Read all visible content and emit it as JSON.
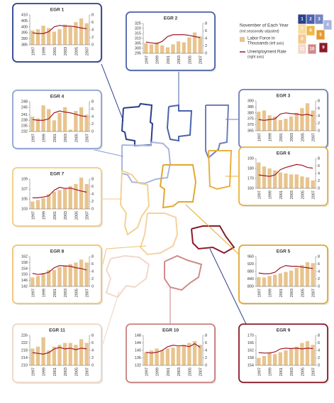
{
  "legend": {
    "title": "November of Each Year",
    "note": "(not seasonally adjusted)",
    "items": [
      {
        "name": "Labor Force in",
        "name2": "Thousands",
        "axis_note": "(left axis)",
        "color": "#e8c48e"
      },
      {
        "name": "Unemployment Rate",
        "axis_note": "(right axis)",
        "color": "#a0182a"
      }
    ],
    "map": [
      {
        "label": "1",
        "color": "#2b3f8c"
      },
      {
        "label": "2",
        "color": "#4a62aa"
      },
      {
        "label": "3",
        "color": "#7385c0"
      },
      {
        "label": "4",
        "color": "#a9b6de"
      },
      {
        "label": "7",
        "color": "#f6dca0"
      },
      {
        "label": "6",
        "color": "#f0b848"
      },
      {
        "label": "5",
        "color": "#e49a30"
      },
      {
        "label": "8",
        "color": "#f6c890"
      },
      {
        "label": "11",
        "color": "#f2d8cc"
      },
      {
        "label": "10",
        "color": "#d08a8a"
      },
      {
        "label": "9",
        "color": "#8b1a2a"
      }
    ]
  },
  "chart_data": [
    {
      "type": "combo",
      "title": "EGR 1",
      "box_color": "#2b3f8c",
      "categories": [
        "1997",
        null,
        "1999",
        null,
        "2001",
        null,
        "2003",
        null,
        "2005",
        null,
        "2007"
      ],
      "ylim": [
        385,
        410
      ],
      "yticks": [
        385,
        390,
        395,
        400,
        405,
        410
      ],
      "y2lim": [
        0,
        8
      ],
      "y2ticks": [
        0,
        2,
        4,
        6,
        8
      ],
      "series": [
        {
          "type": "bar",
          "color": "#e8c48e",
          "values": [
            397,
            398,
            401,
            399,
            396,
            398,
            402,
            400,
            404,
            407,
            403
          ]
        },
        {
          "type": "line",
          "axis": "y2",
          "color": "#a0182a",
          "values": [
            3.2,
            3.0,
            3.0,
            3.5,
            4.8,
            5.2,
            5.0,
            5.0,
            4.8,
            4.5,
            4.3
          ]
        }
      ]
    },
    {
      "type": "combo",
      "title": "EGR 2",
      "box_color": "#4a62aa",
      "categories": [
        "1997",
        null,
        "1999",
        null,
        "2001",
        null,
        "2003",
        null,
        "2005",
        null,
        "2007"
      ],
      "ylim": [
        295,
        325
      ],
      "yticks": [
        295,
        300,
        305,
        310,
        315,
        320,
        325
      ],
      "y2lim": [
        0,
        8
      ],
      "y2ticks": [
        0,
        2,
        4,
        6,
        8
      ],
      "series": [
        {
          "type": "bar",
          "color": "#e8c48e",
          "values": [
            305,
            304,
            306,
            303,
            301,
            304,
            307,
            306,
            311,
            316,
            312
          ]
        },
        {
          "type": "line",
          "axis": "y2",
          "color": "#a0182a",
          "values": [
            3.0,
            2.8,
            2.6,
            3.2,
            4.5,
            5.0,
            5.0,
            5.0,
            4.8,
            4.5,
            4.2
          ]
        }
      ]
    },
    {
      "type": "combo",
      "title": "EGR 3",
      "box_color": "#6d80b8",
      "categories": [
        "1997",
        null,
        "1999",
        null,
        "2001",
        null,
        "2003",
        null,
        "2005",
        null,
        "2007"
      ],
      "ylim": [
        365,
        390
      ],
      "yticks": [
        365,
        370,
        375,
        380,
        385,
        390
      ],
      "y2lim": [
        0,
        8
      ],
      "y2ticks": [
        0,
        2,
        4,
        6,
        8
      ],
      "series": [
        {
          "type": "bar",
          "color": "#e8c48e",
          "values": [
            381,
            382,
            378,
            377,
            374,
            375,
            377,
            380,
            384,
            388,
            382
          ]
        },
        {
          "type": "line",
          "axis": "y2",
          "color": "#a0182a",
          "values": [
            3.0,
            2.8,
            3.0,
            3.2,
            4.5,
            4.8,
            4.6,
            4.5,
            4.2,
            4.4,
            4.0
          ]
        }
      ]
    },
    {
      "type": "combo",
      "title": "EGR 4",
      "box_color": "#8fa0cc",
      "categories": [
        "1997",
        null,
        "1999",
        null,
        "2001",
        null,
        "2003",
        null,
        "2005",
        null,
        "2007"
      ],
      "ylim": [
        232,
        248
      ],
      "yticks": [
        232,
        235,
        238,
        241,
        245,
        248
      ],
      "y2lim": [
        0,
        8
      ],
      "y2ticks": [
        0,
        2,
        4,
        6,
        8
      ],
      "series": [
        {
          "type": "bar",
          "color": "#e8c48e",
          "values": [
            240,
            239,
            246,
            244,
            238,
            242,
            245,
            233,
            243,
            245,
            241
          ]
        },
        {
          "type": "line",
          "axis": "y2",
          "color": "#a0182a",
          "values": [
            3.2,
            3.0,
            3.0,
            3.4,
            5.0,
            5.5,
            5.2,
            5.0,
            4.6,
            4.2,
            4.0
          ]
        }
      ]
    },
    {
      "type": "combo",
      "title": "EGR 5",
      "box_color": "#e0a830",
      "categories": [
        "1997",
        null,
        "1999",
        null,
        "2001",
        null,
        "2003",
        null,
        "2005",
        null,
        "2007"
      ],
      "ylim": [
        800,
        960
      ],
      "yticks": [
        800,
        840,
        880,
        920,
        960
      ],
      "y2lim": [
        0,
        8
      ],
      "y2ticks": [
        0,
        2,
        4,
        6,
        8
      ],
      "series": [
        {
          "type": "bar",
          "color": "#e8c48e",
          "values": [
            850,
            848,
            856,
            862,
            870,
            878,
            885,
            900,
            915,
            930,
            925
          ]
        },
        {
          "type": "line",
          "axis": "y2",
          "color": "#a0182a",
          "values": [
            3.6,
            3.4,
            3.4,
            3.8,
            5.0,
            5.6,
            5.4,
            5.4,
            5.2,
            5.0,
            4.8
          ]
        }
      ]
    },
    {
      "type": "combo",
      "title": "EGR 6",
      "box_color": "#e8b040",
      "categories": [
        "1997",
        null,
        "1999",
        null,
        "2001",
        null,
        "2003",
        null,
        "2005",
        null,
        "2007"
      ],
      "ylim": [
        160,
        190
      ],
      "yticks": [
        160,
        170,
        180,
        190
      ],
      "y2lim": [
        0,
        8
      ],
      "y2ticks": [
        0,
        2,
        4,
        6,
        8
      ],
      "series": [
        {
          "type": "bar",
          "color": "#e8c48e",
          "values": [
            186,
            182,
            180,
            178,
            176,
            175,
            174,
            174,
            172,
            171,
            168
          ]
        },
        {
          "type": "line",
          "axis": "y2",
          "color": "#a0182a",
          "values": [
            3.6,
            3.4,
            3.2,
            3.6,
            5.0,
            5.6,
            6.0,
            6.4,
            6.2,
            5.6,
            5.4
          ]
        }
      ]
    },
    {
      "type": "combo",
      "title": "EGR 7",
      "box_color": "#f0cc80",
      "categories": [
        "1997",
        null,
        "1999",
        null,
        "2001",
        null,
        "2003",
        null,
        "2005",
        null,
        "2007"
      ],
      "ylim": [
        103,
        109
      ],
      "yticks": [
        103,
        105,
        107,
        109
      ],
      "y2lim": [
        0,
        8
      ],
      "y2ticks": [
        0,
        2,
        4,
        6,
        8
      ],
      "series": [
        {
          "type": "bar",
          "color": "#e8c48e",
          "values": [
            104.5,
            104.8,
            105.2,
            106,
            106.5,
            106.8,
            107,
            107.6,
            108,
            109.3,
            108
          ]
        },
        {
          "type": "line",
          "axis": "y2",
          "color": "#a0182a",
          "values": [
            3.0,
            3.0,
            3.2,
            3.5,
            5.0,
            5.8,
            5.5,
            5.6,
            5.2,
            4.8,
            4.5
          ]
        }
      ]
    },
    {
      "type": "combo",
      "title": "EGR 8",
      "box_color": "#f0c070",
      "categories": [
        "1997",
        null,
        "1999",
        null,
        "2001",
        null,
        "2003",
        null,
        "2005",
        null,
        "2007"
      ],
      "ylim": [
        142,
        162
      ],
      "yticks": [
        142,
        146,
        150,
        154,
        158,
        162
      ],
      "y2lim": [
        0,
        8
      ],
      "y2ticks": [
        0,
        2,
        4,
        6,
        8
      ],
      "series": [
        {
          "type": "bar",
          "color": "#e8c48e",
          "values": [
            148,
            149,
            151,
            153,
            153,
            155,
            156,
            157,
            158,
            160,
            158
          ]
        },
        {
          "type": "line",
          "axis": "y2",
          "color": "#a0182a",
          "values": [
            3.5,
            3.2,
            3.4,
            3.8,
            5.0,
            5.6,
            5.5,
            5.4,
            5.0,
            4.8,
            4.4
          ]
        }
      ]
    },
    {
      "type": "combo",
      "title": "EGR 9",
      "box_color": "#8b1a2a",
      "categories": [
        "1997",
        null,
        "1999",
        null,
        "2001",
        null,
        "2003",
        null,
        "2005",
        null,
        "2007"
      ],
      "ylim": [
        154,
        170
      ],
      "yticks": [
        154,
        158,
        162,
        166,
        170
      ],
      "y2lim": [
        0,
        8
      ],
      "y2ticks": [
        0,
        2,
        4,
        6,
        8
      ],
      "series": [
        {
          "type": "bar",
          "color": "#e8c48e",
          "values": [
            158,
            159,
            161,
            160,
            161,
            162,
            163,
            164,
            166,
            167,
            165
          ]
        },
        {
          "type": "line",
          "axis": "y2",
          "color": "#a0182a",
          "values": [
            3.4,
            3.3,
            3.3,
            3.6,
            4.4,
            4.6,
            4.5,
            4.6,
            4.4,
            4.6,
            4.5
          ]
        }
      ]
    },
    {
      "type": "combo",
      "title": "EGR 10",
      "box_color": "#c88080",
      "categories": [
        "1997",
        null,
        "1999",
        null,
        "2001",
        null,
        "2003",
        null,
        "2005",
        null,
        "2007"
      ],
      "ylim": [
        132,
        148
      ],
      "yticks": [
        132,
        136,
        140,
        144,
        148
      ],
      "y2lim": [
        0,
        8
      ],
      "y2ticks": [
        0,
        2,
        4,
        6,
        8
      ],
      "series": [
        {
          "type": "bar",
          "color": "#e8c48e",
          "values": [
            139,
            140,
            141,
            140,
            141,
            141.5,
            142,
            143,
            144,
            145,
            143
          ]
        },
        {
          "type": "line",
          "axis": "y2",
          "color": "#a0182a",
          "values": [
            3.5,
            3.3,
            3.5,
            4.0,
            5.0,
            5.4,
            5.2,
            5.3,
            5.0,
            5.8,
            4.8
          ]
        }
      ]
    },
    {
      "type": "combo",
      "title": "EGR 11",
      "box_color": "#ecd6c4",
      "categories": [
        "1997",
        null,
        "1999",
        null,
        "2001",
        null,
        "2003",
        null,
        "2005",
        null,
        "2007"
      ],
      "ylim": [
        210,
        226
      ],
      "yticks": [
        210,
        214,
        218,
        222,
        226
      ],
      "y2lim": [
        0,
        8
      ],
      "y2ticks": [
        0,
        2,
        4,
        6,
        8
      ],
      "series": [
        {
          "type": "bar",
          "color": "#e8c48e",
          "values": [
            219,
            220,
            225,
            218,
            220,
            221,
            222,
            222,
            221,
            224,
            222
          ]
        },
        {
          "type": "line",
          "axis": "y2",
          "color": "#a0182a",
          "values": [
            3.4,
            3.2,
            3.0,
            3.4,
            4.4,
            4.8,
            4.4,
            4.6,
            4.2,
            4.6,
            4.4
          ]
        }
      ]
    }
  ]
}
